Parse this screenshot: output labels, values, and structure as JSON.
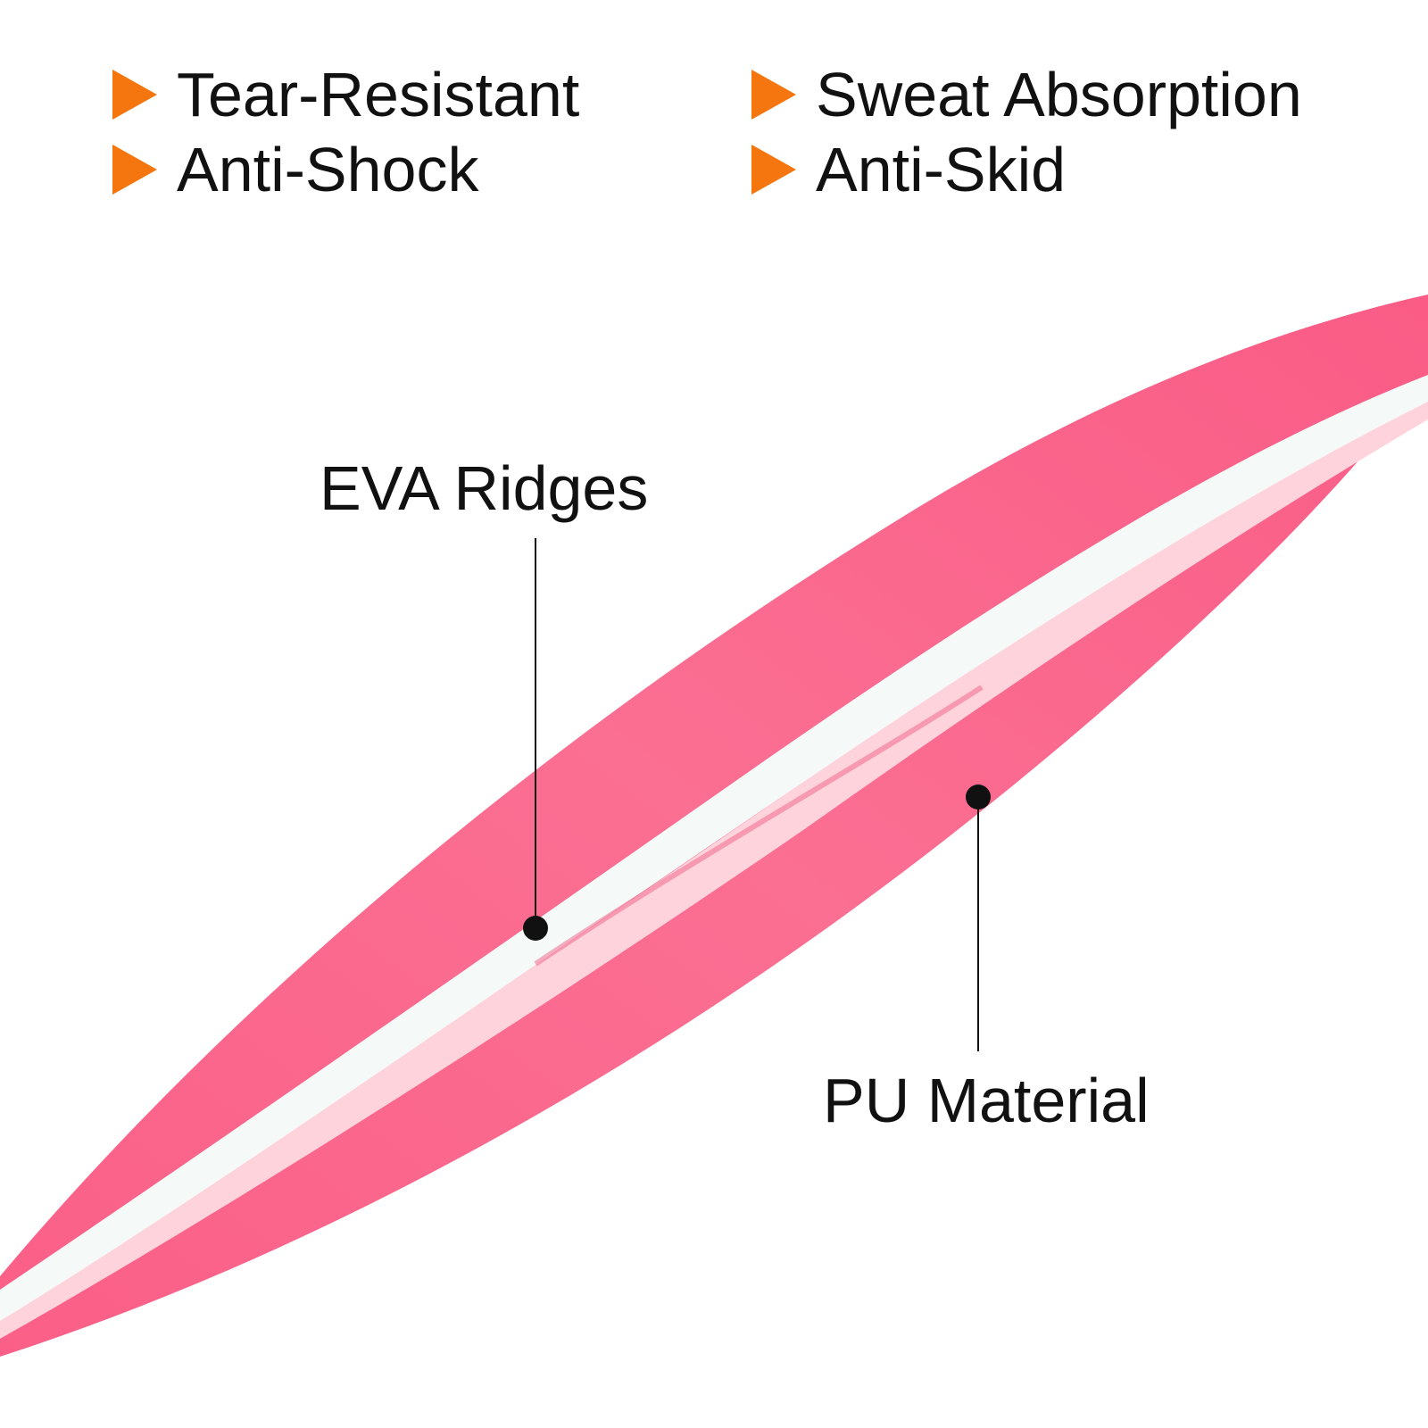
{
  "features": [
    {
      "label": "Tear-Resistant",
      "icon": "orange-triangle-icon"
    },
    {
      "label": "Anti-Shock",
      "icon": "orange-triangle-icon"
    },
    {
      "label": "Sweat Absorption",
      "icon": "orange-triangle-icon"
    },
    {
      "label": "Anti-Skid",
      "icon": "orange-triangle-icon"
    }
  ],
  "callouts": {
    "eva": "EVA Ridges",
    "pu": "PU Material"
  },
  "colors": {
    "accent": "#f5760f",
    "grip_pink": "#f96d92",
    "ridge_white": "#f4f9f8",
    "ridge_pink": "#ffd7df",
    "text": "#111111"
  }
}
